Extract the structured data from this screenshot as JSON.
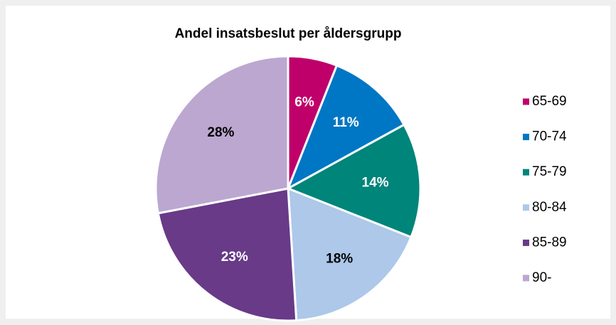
{
  "chart_data": {
    "type": "pie",
    "title": "Andel insatsbeslut per åldersgrupp",
    "categories": [
      "65-69",
      "70-74",
      "75-79",
      "80-84",
      "85-89",
      "90-"
    ],
    "values": [
      6,
      11,
      14,
      18,
      23,
      28
    ],
    "value_labels": [
      "6%",
      "11%",
      "14%",
      "18%",
      "23%",
      "28%"
    ],
    "colors": [
      "#c0006a",
      "#0077c4",
      "#00857a",
      "#adc8e9",
      "#683a88",
      "#bba7d0"
    ],
    "legend": "right"
  }
}
